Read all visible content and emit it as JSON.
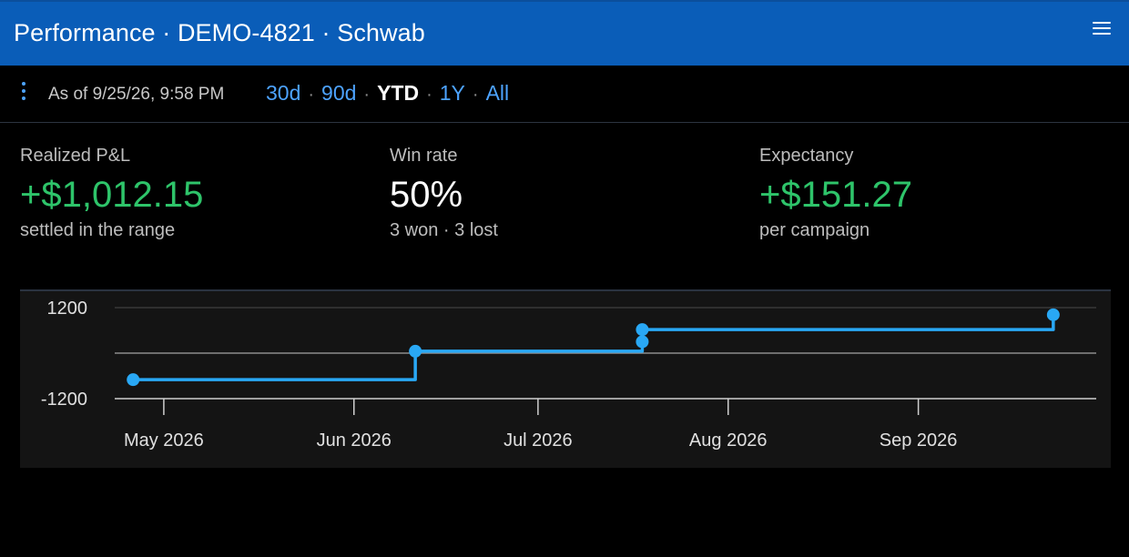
{
  "header": {
    "title": "Performance · DEMO-4821 · Schwab",
    "menu_icon": "hamburger-menu-icon"
  },
  "toolbar": {
    "more_icon": "kebab-menu-icon",
    "as_of": "As of 9/25/26, 9:58 PM",
    "ranges": [
      {
        "label": "30d",
        "active": false
      },
      {
        "label": "90d",
        "active": false
      },
      {
        "label": "YTD",
        "active": true
      },
      {
        "label": "1Y",
        "active": false
      },
      {
        "label": "All",
        "active": false
      }
    ]
  },
  "stats": [
    {
      "label": "Realized P&L",
      "value": "+$1,012.15",
      "sub": "settled in the range",
      "tone": "positive"
    },
    {
      "label": "Win rate",
      "value": "50%",
      "sub": "3 won · 3 lost",
      "tone": "neutral"
    },
    {
      "label": "Expectancy",
      "value": "+$151.27",
      "sub": "per campaign",
      "tone": "positive"
    }
  ],
  "chart_data": {
    "type": "line",
    "step": true,
    "title": "",
    "xlabel": "",
    "ylabel": "",
    "ylim": [
      -1200,
      1200
    ],
    "yticks": [
      1200,
      0,
      -1200
    ],
    "ytick_labels": [
      "1200",
      "",
      "-1200"
    ],
    "xticks": [
      "2026-05-01",
      "2026-06-01",
      "2026-07-01",
      "2026-08-01",
      "2026-09-01"
    ],
    "xtick_labels": [
      "May 2026",
      "Jun 2026",
      "Jul 2026",
      "Aug 2026",
      "Sep 2026"
    ],
    "xlim": [
      "2026-04-23",
      "2026-09-30"
    ],
    "grid": true,
    "series": [
      {
        "color": "#29a8f5",
        "points": [
          {
            "x": "2026-04-26",
            "y": -700
          },
          {
            "x": "2026-06-11",
            "y": 50
          },
          {
            "x": "2026-07-18",
            "y": 300
          },
          {
            "x": "2026-07-18",
            "y": 620
          },
          {
            "x": "2026-09-23",
            "y": 1012.15
          }
        ]
      }
    ]
  }
}
